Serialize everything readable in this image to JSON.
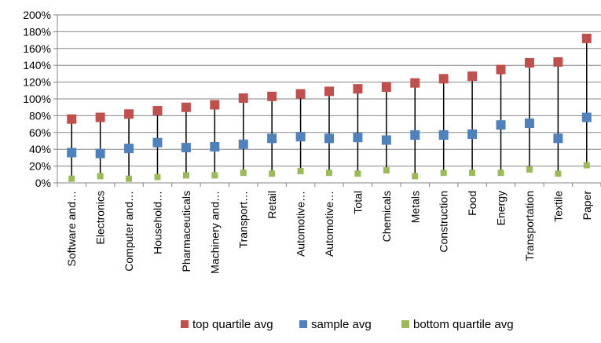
{
  "chart_data": {
    "type": "scatter",
    "title": "",
    "xlabel": "",
    "ylabel": "",
    "y_unit": "%",
    "ylim": [
      0,
      200
    ],
    "y_ticks": [
      0,
      20,
      40,
      60,
      80,
      100,
      120,
      140,
      160,
      180,
      200
    ],
    "y_tick_labels": [
      "0%",
      "20%",
      "40%",
      "60%",
      "80%",
      "100%",
      "120%",
      "140%",
      "160%",
      "180%",
      "200%"
    ],
    "grid": true,
    "legend_position": "bottom",
    "categories": [
      "Software and…",
      "Electronics",
      "Computer and…",
      "Household…",
      "Pharmaceuticals",
      "Machinery and…",
      "Transport…",
      "Retail",
      "Automotive…",
      "Automotive…",
      "Total",
      "Chemicals",
      "Metals",
      "Construction",
      "Food",
      "Energy",
      "Transportation",
      "Textile",
      "Paper"
    ],
    "series": [
      {
        "name": "top quartile avg",
        "color": "#c0504d",
        "values": [
          76,
          78,
          82,
          86,
          90,
          93,
          101,
          103,
          106,
          109,
          112,
          114,
          119,
          124,
          127,
          135,
          143,
          144,
          172
        ]
      },
      {
        "name": "sample avg",
        "color": "#4f81bd",
        "values": [
          36,
          35,
          41,
          48,
          42,
          43,
          46,
          53,
          55,
          53,
          54,
          51,
          57,
          57,
          58,
          69,
          71,
          53,
          78
        ]
      },
      {
        "name": "bottom quartile avg",
        "color": "#9bbb59",
        "values": [
          5,
          8,
          5,
          7,
          9,
          9,
          12,
          11,
          14,
          12,
          11,
          15,
          8,
          12,
          12,
          12,
          16,
          11,
          21
        ]
      }
    ]
  }
}
